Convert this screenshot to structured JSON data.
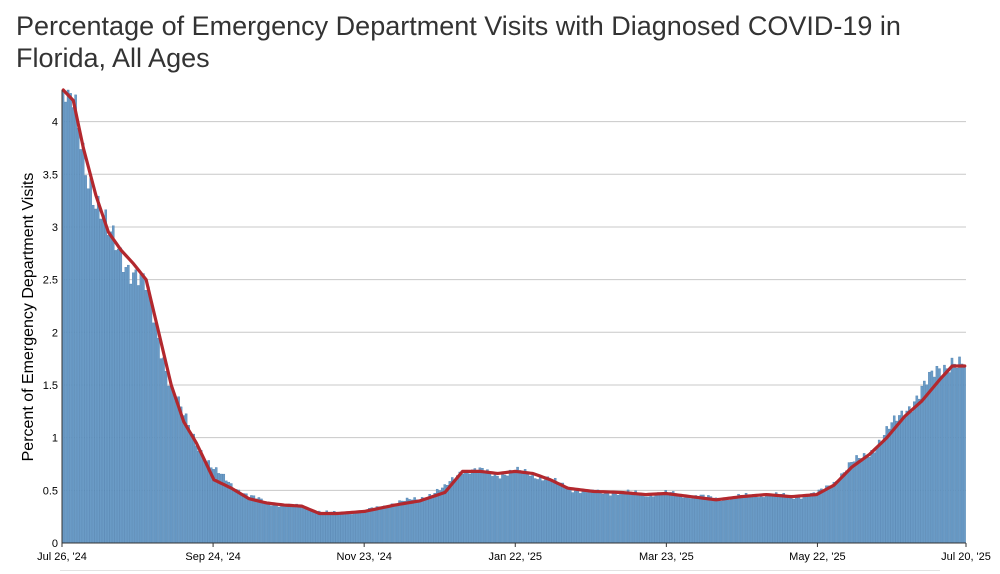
{
  "chart_data": {
    "type": "bar",
    "title": "Percentage of Emergency Department Visits with Diagnosed COVID-19 in Florida, All Ages",
    "ylabel": "Percent of Emergency Department Visits",
    "xlabel": "",
    "ylim": [
      0,
      4.3
    ],
    "yticks": [
      0,
      0.5,
      1,
      1.5,
      2,
      2.5,
      3,
      3.5,
      4
    ],
    "ytick_labels": [
      "0",
      "0.5",
      "1",
      "1.5",
      "2",
      "2.5",
      "3",
      "3.5",
      "4"
    ],
    "xticks": [
      "Jul 26, '24",
      "Sep 24, '24",
      "Nov 23, '24",
      "Jan 22, '25",
      "Mar 23, '25",
      "May 22, '25",
      "Jul 20, '25"
    ],
    "x_start": "2024-07-26",
    "x_end": "2025-07-20",
    "grid": true,
    "bar_color": "#6a9bc6",
    "line_color": "#b2282e",
    "series": [
      {
        "kind": "bar",
        "description": "daily values",
        "x": [
          "Jul 26, '24",
          "Jul 30, '24",
          "Aug 3, '24",
          "Aug 8, '24",
          "Aug 13, '24",
          "Aug 18, '24",
          "Aug 23, '24",
          "Aug 28, '24",
          "Sep 2, '24",
          "Sep 7, '24",
          "Sep 12, '24",
          "Sep 17, '24",
          "Sep 24, '24",
          "Oct 1, '24",
          "Oct 8, '24",
          "Oct 15, '24",
          "Oct 22, '24",
          "Oct 29, '24",
          "Nov 5, '24",
          "Nov 12, '24",
          "Nov 23, '24",
          "Dec 5, '24",
          "Dec 15, '24",
          "Dec 25, '24",
          "Jan 1, '25",
          "Jan 8, '25",
          "Jan 15, '25",
          "Jan 22, '25",
          "Jan 29, '25",
          "Feb 5, '25",
          "Feb 12, '25",
          "Feb 22, '25",
          "Mar 5, '25",
          "Mar 15, '25",
          "Mar 23, '25",
          "Apr 2, '25",
          "Apr 12, '25",
          "Apr 22, '25",
          "May 2, '25",
          "May 12, '25",
          "May 22, '25",
          "May 29, '25",
          "Jun 5, '25",
          "Jun 12, '25",
          "Jun 19, '25",
          "Jun 26, '25",
          "Jul 3, '25",
          "Jul 10, '25",
          "Jul 15, '25",
          "Jul 20, '25"
        ],
        "values": [
          4.3,
          4.1,
          3.7,
          3.3,
          2.9,
          2.75,
          2.6,
          2.4,
          1.95,
          1.5,
          1.2,
          0.95,
          0.7,
          0.55,
          0.45,
          0.38,
          0.36,
          0.34,
          0.3,
          0.28,
          0.3,
          0.38,
          0.42,
          0.52,
          0.7,
          0.68,
          0.65,
          0.68,
          0.65,
          0.6,
          0.52,
          0.48,
          0.48,
          0.46,
          0.47,
          0.45,
          0.42,
          0.44,
          0.46,
          0.44,
          0.46,
          0.58,
          0.75,
          0.85,
          1.05,
          1.25,
          1.45,
          1.65,
          1.75,
          1.65
        ]
      },
      {
        "kind": "line",
        "description": "moving average",
        "x": [
          "Jul 26, '24",
          "Jul 30, '24",
          "Aug 3, '24",
          "Aug 8, '24",
          "Aug 13, '24",
          "Aug 18, '24",
          "Aug 23, '24",
          "Aug 28, '24",
          "Sep 2, '24",
          "Sep 7, '24",
          "Sep 12, '24",
          "Sep 17, '24",
          "Sep 24, '24",
          "Oct 1, '24",
          "Oct 8, '24",
          "Oct 15, '24",
          "Oct 22, '24",
          "Oct 29, '24",
          "Nov 5, '24",
          "Nov 12, '24",
          "Nov 23, '24",
          "Dec 5, '24",
          "Dec 15, '24",
          "Dec 25, '24",
          "Jan 1, '25",
          "Jan 8, '25",
          "Jan 15, '25",
          "Jan 22, '25",
          "Jan 29, '25",
          "Feb 5, '25",
          "Feb 12, '25",
          "Feb 22, '25",
          "Mar 5, '25",
          "Mar 15, '25",
          "Mar 23, '25",
          "Apr 2, '25",
          "Apr 12, '25",
          "Apr 22, '25",
          "May 2, '25",
          "May 12, '25",
          "May 22, '25",
          "May 29, '25",
          "Jun 5, '25",
          "Jun 12, '25",
          "Jun 19, '25",
          "Jun 26, '25",
          "Jul 3, '25",
          "Jul 10, '25",
          "Jul 15, '25",
          "Jul 20, '25"
        ],
        "values": [
          4.3,
          4.2,
          3.75,
          3.3,
          2.95,
          2.78,
          2.65,
          2.5,
          2.0,
          1.5,
          1.15,
          0.95,
          0.6,
          0.52,
          0.42,
          0.38,
          0.36,
          0.35,
          0.28,
          0.28,
          0.3,
          0.36,
          0.4,
          0.48,
          0.68,
          0.68,
          0.66,
          0.68,
          0.66,
          0.6,
          0.52,
          0.49,
          0.48,
          0.46,
          0.47,
          0.44,
          0.41,
          0.44,
          0.46,
          0.44,
          0.46,
          0.55,
          0.72,
          0.84,
          1.0,
          1.2,
          1.35,
          1.55,
          1.68,
          1.68
        ]
      }
    ]
  }
}
